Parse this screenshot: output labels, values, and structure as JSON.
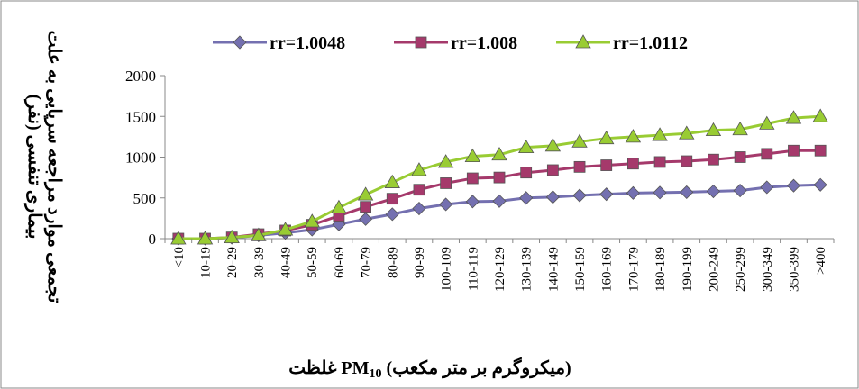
{
  "chart_data": {
    "type": "line",
    "title": "",
    "xlabel_main": "غلظت",
    "xlabel_pm": "PM",
    "xlabel_sub": "10",
    "xlabel_unit": "(میکروگرم بر متر مکعب)",
    "ylabel_line1": "تجمعی موارد مراجعه سرپایی به علت",
    "ylabel_line2": "بیماری تنفسی (نفر)",
    "ylim": [
      0,
      2000
    ],
    "yticks": [
      "0",
      "500",
      "1000",
      "1500",
      "2000"
    ],
    "grid": false,
    "legend_position": "top",
    "categories": [
      "<10",
      "10-19",
      "20-29",
      "30-39",
      "40-49",
      "50-59",
      "60-69",
      "70-79",
      "80-89",
      "90-99",
      "100-109",
      "110-119",
      "120-129",
      "130-139",
      "140-149",
      "150-159",
      "160-169",
      "170-179",
      "180-189",
      "190-199",
      "200-249",
      "250-299",
      "300-349",
      "350-399",
      ">400"
    ],
    "series": [
      {
        "name": "rr=1.0048",
        "color": "#7470b0",
        "marker": "diamond",
        "values": [
          0,
          0,
          10,
          40,
          70,
          110,
          175,
          240,
          300,
          370,
          420,
          455,
          460,
          500,
          510,
          530,
          545,
          560,
          565,
          570,
          580,
          590,
          630,
          650,
          660
        ]
      },
      {
        "name": "rr=1.008",
        "color": "#a5396b",
        "marker": "square",
        "values": [
          0,
          0,
          15,
          55,
          100,
          170,
          280,
          390,
          490,
          600,
          680,
          740,
          750,
          810,
          840,
          880,
          900,
          920,
          940,
          950,
          970,
          1000,
          1040,
          1080,
          1080
        ]
      },
      {
        "name": "rr=1.0112",
        "color": "#99cc33",
        "marker": "triangle",
        "values": [
          0,
          0,
          15,
          40,
          110,
          210,
          380,
          540,
          690,
          840,
          940,
          1010,
          1030,
          1120,
          1140,
          1190,
          1230,
          1250,
          1270,
          1290,
          1330,
          1340,
          1410,
          1480,
          1500
        ]
      }
    ]
  }
}
